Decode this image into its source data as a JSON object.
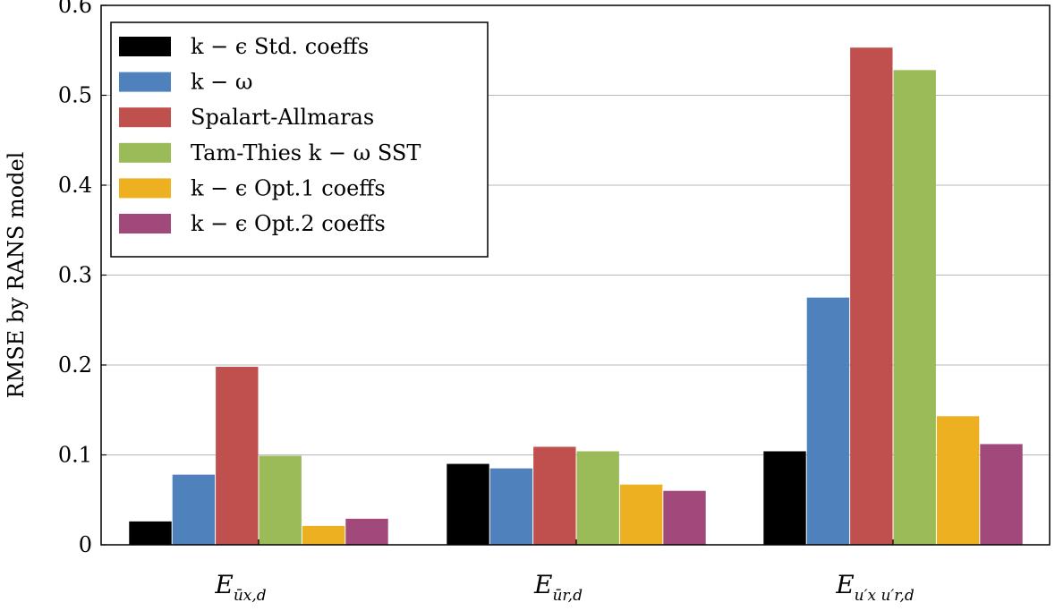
{
  "chart_data": {
    "type": "bar",
    "title": "",
    "xlabel": "",
    "ylabel": "RMSE by RANS model",
    "ylim": [
      0,
      0.6
    ],
    "yticks": [
      "0",
      "0.1",
      "0.2",
      "0.3",
      "0.4",
      "0.5",
      "0.6"
    ],
    "grid": true,
    "legend_position": "top-left",
    "categories": [
      {
        "base": "E",
        "sub": "ūx,d"
      },
      {
        "base": "E",
        "sub": "ūr,d"
      },
      {
        "base": "E",
        "sub": "u′x u′r,d"
      }
    ],
    "series": [
      {
        "name": "k − ϵ Std. coeffs",
        "color": "#000000",
        "values": [
          0.026,
          0.09,
          0.104
        ]
      },
      {
        "name": "k − ω",
        "color": "#4f81bd",
        "values": [
          0.078,
          0.085,
          0.275
        ]
      },
      {
        "name": "Spalart-Allmaras",
        "color": "#c0504d",
        "values": [
          0.198,
          0.109,
          0.553
        ]
      },
      {
        "name": "Tam-Thies k − ω SST",
        "color": "#9bbb59",
        "values": [
          0.099,
          0.104,
          0.528
        ]
      },
      {
        "name": "k − ϵ Opt.1 coeffs",
        "color": "#edb021",
        "values": [
          0.021,
          0.067,
          0.143
        ]
      },
      {
        "name": "k − ϵ Opt.2 coeffs",
        "color": "#a0497a",
        "values": [
          0.029,
          0.06,
          0.112
        ]
      }
    ]
  }
}
